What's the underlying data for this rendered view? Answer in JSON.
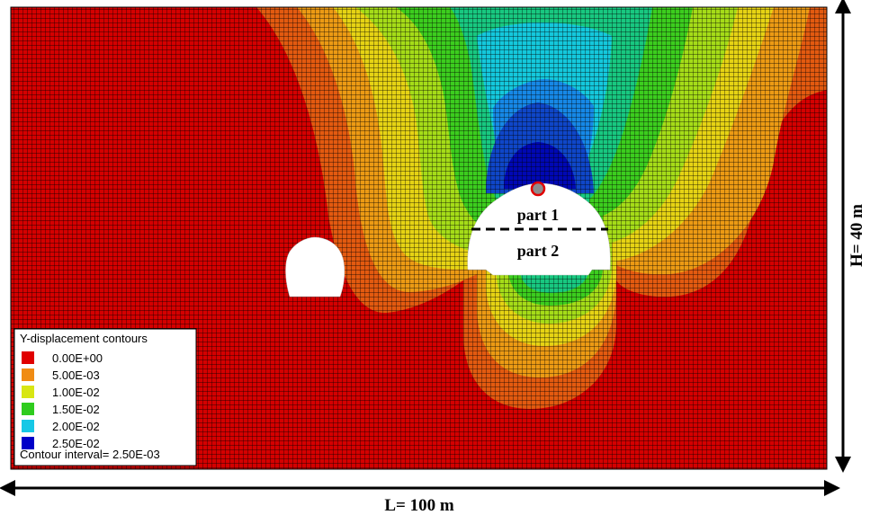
{
  "figure": {
    "part_labels": [
      "part 1",
      "part 2"
    ],
    "dimension_labels": {
      "width": "L= 100 m",
      "height": "H= 40 m"
    }
  },
  "legend": {
    "title": "Y-displacement contours",
    "entries": [
      {
        "label": "0.00E+00",
        "color": "#e00000"
      },
      {
        "label": "5.00E-03",
        "color": "#f08c14"
      },
      {
        "label": "1.00E-02",
        "color": "#d8e614"
      },
      {
        "label": "1.50E-02",
        "color": "#2fcc1e"
      },
      {
        "label": "2.00E-02",
        "color": "#16c8e6"
      },
      {
        "label": "2.50E-02",
        "color": "#0000c8"
      }
    ],
    "interval_label": "Contour interval=",
    "interval_value": "2.50E-03"
  },
  "colors": {
    "level0": "#d40000",
    "level1": "#e35a10",
    "level2": "#ec9a14",
    "level3": "#e6d314",
    "level4": "#a5dc18",
    "level5": "#3ccd1e",
    "level6": "#18c880",
    "level7": "#14c8dc",
    "level8": "#1688e6",
    "level9": "#0f46c8",
    "level10": "#0008b4",
    "mesh": "#000000",
    "marker_fill": "#8c8c8c",
    "marker_stroke": "#e00000"
  }
}
